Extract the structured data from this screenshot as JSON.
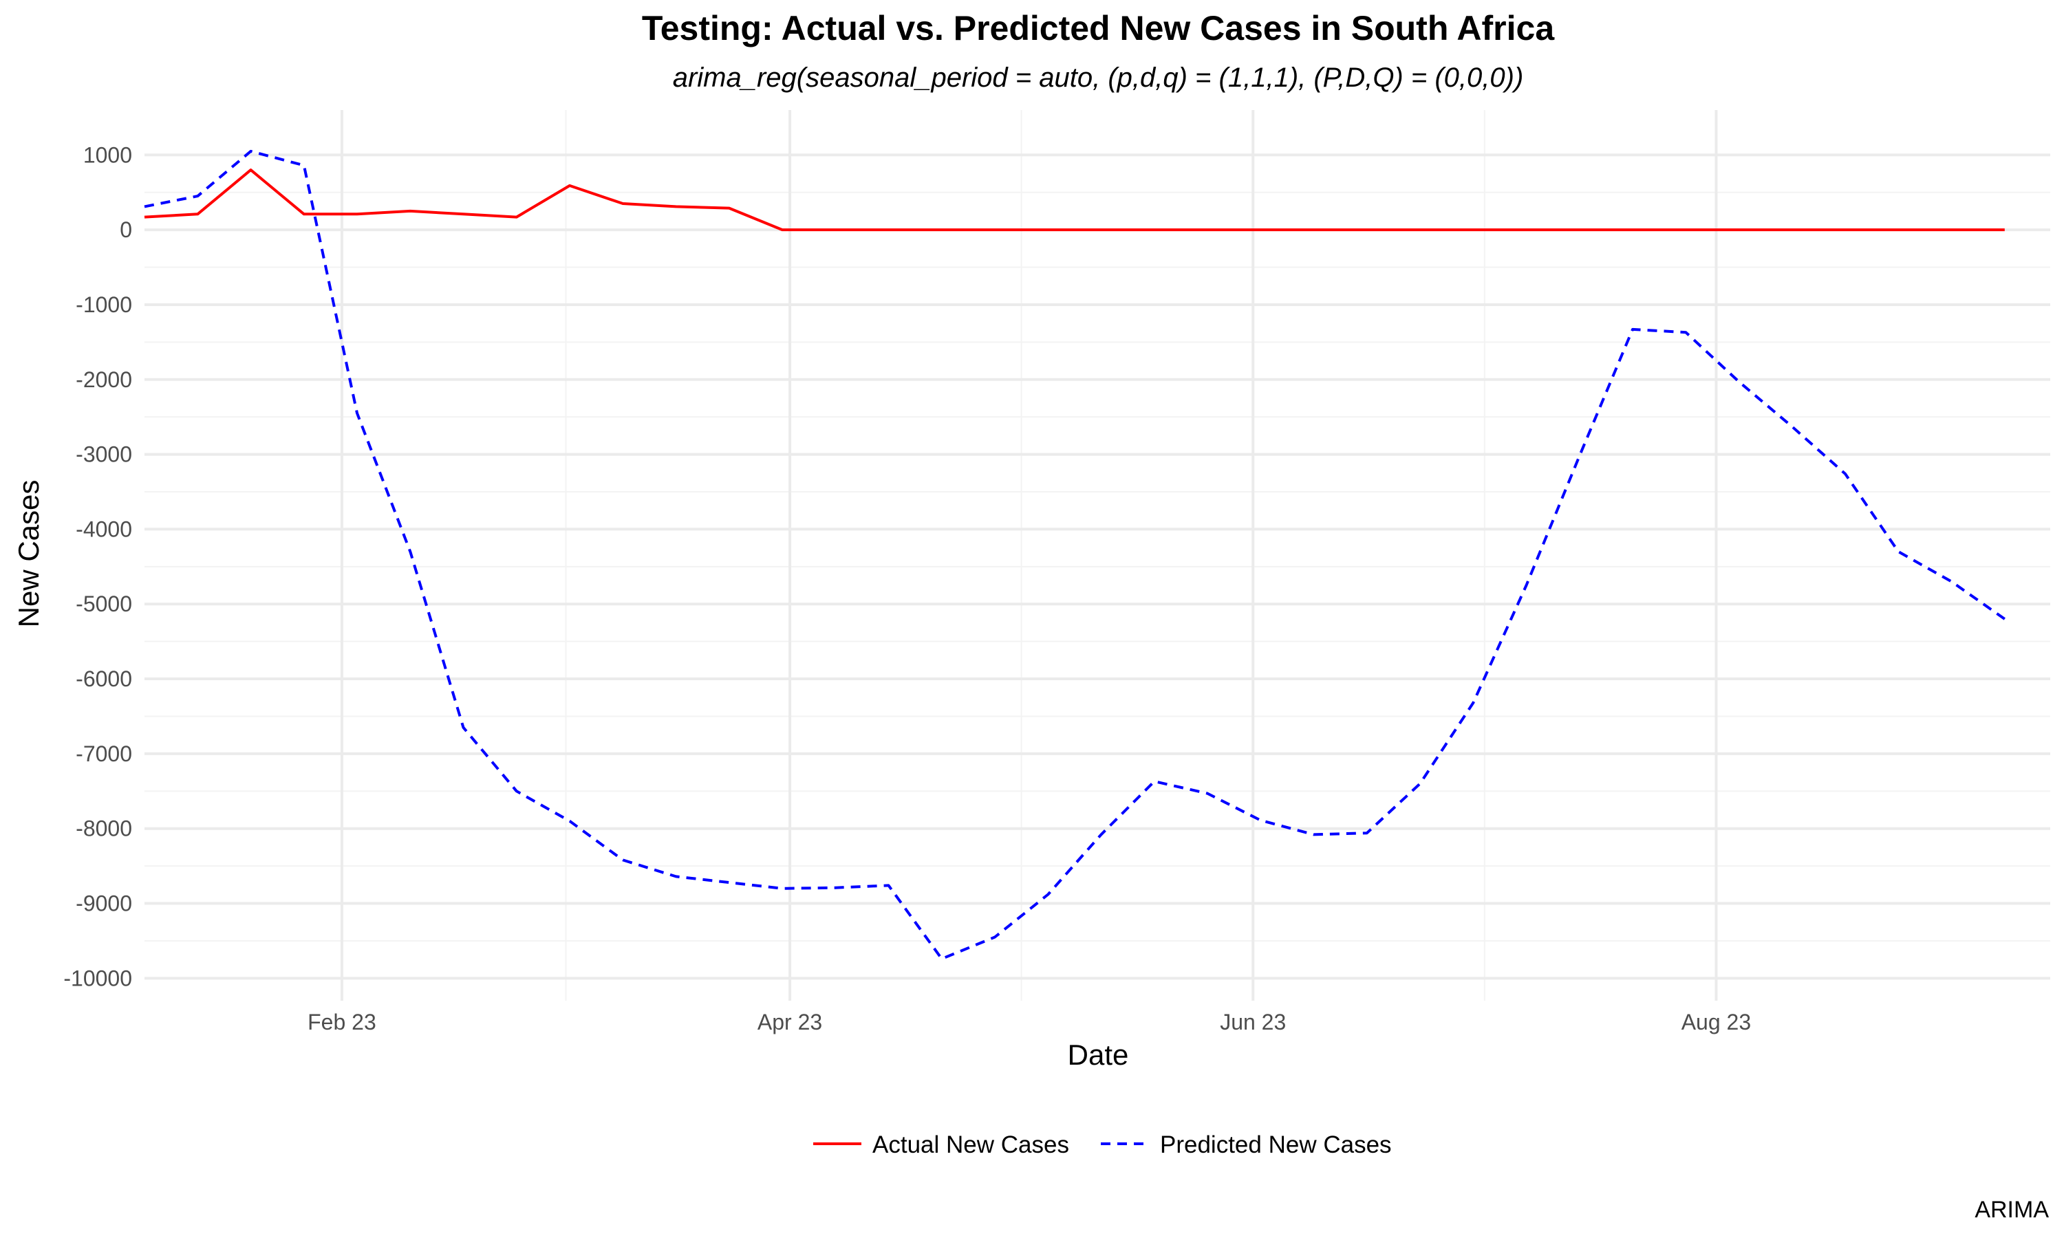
{
  "chart_data": {
    "type": "line",
    "title": "Testing: Actual vs. Predicted New Cases in South Africa",
    "subtitle": "arima_reg(seasonal_period = auto, (p,d,q) = (1,1,1), (P,D,Q) = (0,0,0))",
    "xlabel": "Date",
    "ylabel": "New Cases",
    "caption": "ARIMA",
    "xlim": [
      "2023-01-06",
      "2023-09-14"
    ],
    "ylim": [
      -10300,
      1600
    ],
    "x_ticks": [
      {
        "date": "2023-02-01",
        "label": "Feb 23"
      },
      {
        "date": "2023-04-01",
        "label": "Apr 23"
      },
      {
        "date": "2023-06-01",
        "label": "Jun 23"
      },
      {
        "date": "2023-08-01",
        "label": "Aug 23"
      }
    ],
    "y_ticks": [
      1000,
      0,
      -1000,
      -2000,
      -3000,
      -4000,
      -5000,
      -6000,
      -7000,
      -8000,
      -9000,
      -10000
    ],
    "grid": true,
    "legend_position": "bottom",
    "series": [
      {
        "name": "Actual New Cases",
        "color": "#ff0000",
        "linestyle": "solid",
        "points": [
          [
            "2023-01-06",
            170
          ],
          [
            "2023-01-13",
            210
          ],
          [
            "2023-01-20",
            800
          ],
          [
            "2023-01-27",
            210
          ],
          [
            "2023-02-03",
            210
          ],
          [
            "2023-02-10",
            250
          ],
          [
            "2023-02-17",
            210
          ],
          [
            "2023-02-24",
            170
          ],
          [
            "2023-03-03",
            590
          ],
          [
            "2023-03-10",
            350
          ],
          [
            "2023-03-17",
            310
          ],
          [
            "2023-03-24",
            290
          ],
          [
            "2023-03-31",
            0
          ],
          [
            "2023-04-07",
            0
          ],
          [
            "2023-04-14",
            0
          ],
          [
            "2023-04-21",
            0
          ],
          [
            "2023-04-28",
            0
          ],
          [
            "2023-05-05",
            0
          ],
          [
            "2023-05-12",
            0
          ],
          [
            "2023-05-19",
            0
          ],
          [
            "2023-05-26",
            0
          ],
          [
            "2023-06-02",
            0
          ],
          [
            "2023-06-09",
            0
          ],
          [
            "2023-06-16",
            0
          ],
          [
            "2023-06-23",
            0
          ],
          [
            "2023-06-30",
            0
          ],
          [
            "2023-07-07",
            0
          ],
          [
            "2023-07-14",
            0
          ],
          [
            "2023-07-21",
            0
          ],
          [
            "2023-07-28",
            0
          ],
          [
            "2023-08-04",
            0
          ],
          [
            "2023-08-11",
            0
          ],
          [
            "2023-08-18",
            0
          ],
          [
            "2023-08-25",
            0
          ],
          [
            "2023-09-01",
            0
          ],
          [
            "2023-09-08",
            0
          ]
        ]
      },
      {
        "name": "Predicted New Cases",
        "color": "#0000ff",
        "linestyle": "dashed",
        "points": [
          [
            "2023-01-06",
            310
          ],
          [
            "2023-01-13",
            450
          ],
          [
            "2023-01-20",
            1050
          ],
          [
            "2023-01-27",
            860
          ],
          [
            "2023-02-03",
            -2450
          ],
          [
            "2023-02-10",
            -4300
          ],
          [
            "2023-02-17",
            -6650
          ],
          [
            "2023-02-24",
            -7500
          ],
          [
            "2023-03-03",
            -7900
          ],
          [
            "2023-03-10",
            -8420
          ],
          [
            "2023-03-17",
            -8640
          ],
          [
            "2023-03-24",
            -8720
          ],
          [
            "2023-03-31",
            -8800
          ],
          [
            "2023-04-07",
            -8790
          ],
          [
            "2023-04-14",
            -8760
          ],
          [
            "2023-04-21",
            -9740
          ],
          [
            "2023-04-28",
            -9450
          ],
          [
            "2023-05-05",
            -8880
          ],
          [
            "2023-05-12",
            -8080
          ],
          [
            "2023-05-19",
            -7370
          ],
          [
            "2023-05-26",
            -7530
          ],
          [
            "2023-06-02",
            -7890
          ],
          [
            "2023-06-09",
            -8080
          ],
          [
            "2023-06-16",
            -8060
          ],
          [
            "2023-06-23",
            -7400
          ],
          [
            "2023-06-30",
            -6320
          ],
          [
            "2023-07-07",
            -4750
          ],
          [
            "2023-07-14",
            -3020
          ],
          [
            "2023-07-21",
            -1330
          ],
          [
            "2023-07-28",
            -1370
          ],
          [
            "2023-08-04",
            -2030
          ],
          [
            "2023-08-11",
            -2630
          ],
          [
            "2023-08-18",
            -3260
          ],
          [
            "2023-08-25",
            -4300
          ],
          [
            "2023-09-01",
            -4700
          ],
          [
            "2023-09-08",
            -5200
          ]
        ]
      }
    ]
  }
}
